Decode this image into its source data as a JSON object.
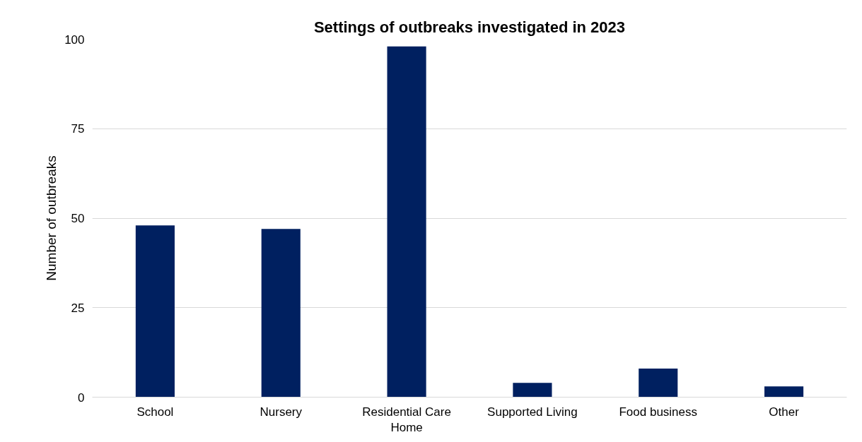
{
  "chart_data": {
    "type": "bar",
    "title": "Settings of outbreaks investigated in 2023",
    "ylabel": "Number of outbreaks",
    "categories": [
      "School",
      "Nursery",
      "Residential Care Home",
      "Supported Living",
      "Food business",
      "Other"
    ],
    "values": [
      48,
      47,
      98,
      4,
      8,
      3
    ],
    "color": "#002060",
    "ylim": [
      0,
      100
    ],
    "yticks": [
      0,
      25,
      50,
      75,
      100
    ],
    "grid": "y"
  }
}
